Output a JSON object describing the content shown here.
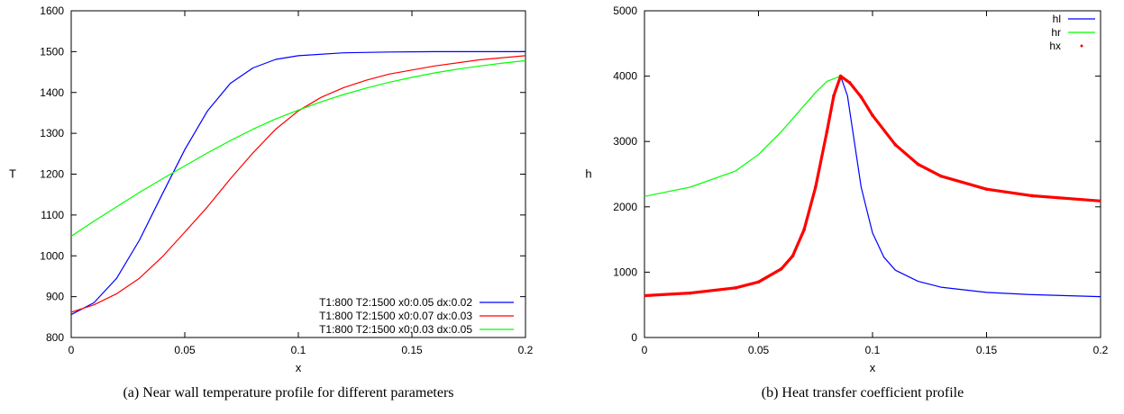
{
  "chart_data": [
    {
      "type": "line",
      "caption": "(a)  Near wall temperature profile for different parameters",
      "xlabel": "x",
      "ylabel": "T",
      "xlim": [
        0,
        0.2
      ],
      "ylim": [
        800,
        1600
      ],
      "xticks": [
        0,
        0.05,
        0.1,
        0.15,
        0.2
      ],
      "xtick_labels": [
        "0",
        "0.05",
        "0.1",
        "0.15",
        "0.2"
      ],
      "yticks": [
        800,
        900,
        1000,
        1100,
        1200,
        1300,
        1400,
        1500,
        1600
      ],
      "ytick_labels": [
        "800",
        "900",
        "1000",
        "1100",
        "1200",
        "1300",
        "1400",
        "1500",
        "1600"
      ],
      "legend_position": "bottom-right",
      "series": [
        {
          "name": "T1:800 T2:1500 x0:0.05 dx:0.02",
          "color": "#0000ff",
          "style": "line",
          "x": [
            0,
            0.01,
            0.02,
            0.03,
            0.04,
            0.05,
            0.06,
            0.07,
            0.08,
            0.09,
            0.1,
            0.12,
            0.14,
            0.16,
            0.18,
            0.2
          ],
          "y": [
            856,
            885,
            945,
            1038,
            1150,
            1260,
            1355,
            1422,
            1460,
            1481,
            1490,
            1497,
            1499,
            1500,
            1500,
            1500
          ]
        },
        {
          "name": "T1:800 T2:1500 x0:0.07 dx:0.03",
          "color": "#ff0000",
          "style": "line",
          "x": [
            0,
            0.01,
            0.02,
            0.03,
            0.04,
            0.05,
            0.06,
            0.07,
            0.08,
            0.09,
            0.1,
            0.11,
            0.12,
            0.13,
            0.14,
            0.16,
            0.18,
            0.2
          ],
          "y": [
            862,
            880,
            907,
            945,
            997,
            1058,
            1120,
            1188,
            1252,
            1310,
            1355,
            1388,
            1412,
            1430,
            1445,
            1465,
            1480,
            1490
          ]
        },
        {
          "name": "T1:800 T2:1500 x0:0.03 dx:0.05",
          "color": "#00ff00",
          "style": "line",
          "x": [
            0,
            0.01,
            0.02,
            0.03,
            0.04,
            0.05,
            0.06,
            0.07,
            0.08,
            0.09,
            0.1,
            0.11,
            0.12,
            0.13,
            0.14,
            0.15,
            0.16,
            0.17,
            0.18,
            0.19,
            0.2
          ],
          "y": [
            1048,
            1085,
            1120,
            1155,
            1188,
            1220,
            1252,
            1282,
            1310,
            1335,
            1357,
            1377,
            1395,
            1411,
            1425,
            1437,
            1448,
            1457,
            1465,
            1472,
            1478
          ]
        }
      ]
    },
    {
      "type": "line",
      "caption": "(b)  Heat transfer coefficient profile",
      "xlabel": "x",
      "ylabel": "h",
      "xlim": [
        0,
        0.2
      ],
      "ylim": [
        0,
        5000
      ],
      "xticks": [
        0,
        0.05,
        0.1,
        0.15,
        0.2
      ],
      "xtick_labels": [
        "0",
        "0.05",
        "0.1",
        "0.15",
        "0.2"
      ],
      "yticks": [
        0,
        1000,
        2000,
        3000,
        4000,
        5000
      ],
      "ytick_labels": [
        "0",
        "1000",
        "2000",
        "3000",
        "4000",
        "5000"
      ],
      "legend_position": "top-right",
      "series": [
        {
          "name": "hl",
          "color": "#0000ff",
          "style": "line",
          "x": [
            0,
            0.02,
            0.04,
            0.05,
            0.06,
            0.065,
            0.07,
            0.075,
            0.08,
            0.083,
            0.086,
            0.089,
            0.092,
            0.095,
            0.1,
            0.105,
            0.11,
            0.12,
            0.13,
            0.15,
            0.17,
            0.2
          ],
          "y": [
            640,
            680,
            760,
            850,
            1050,
            1250,
            1650,
            2300,
            3150,
            3700,
            4000,
            3700,
            3000,
            2300,
            1600,
            1230,
            1030,
            860,
            770,
            690,
            655,
            625
          ]
        },
        {
          "name": "hr",
          "color": "#00ff00",
          "style": "line",
          "x": [
            0,
            0.02,
            0.04,
            0.05,
            0.06,
            0.07,
            0.075,
            0.08,
            0.086,
            0.09,
            0.095,
            0.1,
            0.11,
            0.12,
            0.13,
            0.15,
            0.17,
            0.2
          ],
          "y": [
            2160,
            2300,
            2550,
            2800,
            3150,
            3550,
            3750,
            3920,
            4000,
            3900,
            3680,
            3400,
            2950,
            2650,
            2470,
            2270,
            2170,
            2090
          ]
        },
        {
          "name": "hx",
          "color": "#ff0000",
          "style": "points",
          "x": [
            0,
            0.02,
            0.04,
            0.05,
            0.06,
            0.065,
            0.07,
            0.075,
            0.08,
            0.083,
            0.086,
            0.09,
            0.095,
            0.1,
            0.11,
            0.12,
            0.13,
            0.15,
            0.17,
            0.2
          ],
          "y": [
            640,
            680,
            760,
            850,
            1050,
            1250,
            1650,
            2300,
            3150,
            3700,
            4000,
            3900,
            3680,
            3400,
            2950,
            2650,
            2470,
            2270,
            2170,
            2090
          ]
        }
      ]
    }
  ]
}
